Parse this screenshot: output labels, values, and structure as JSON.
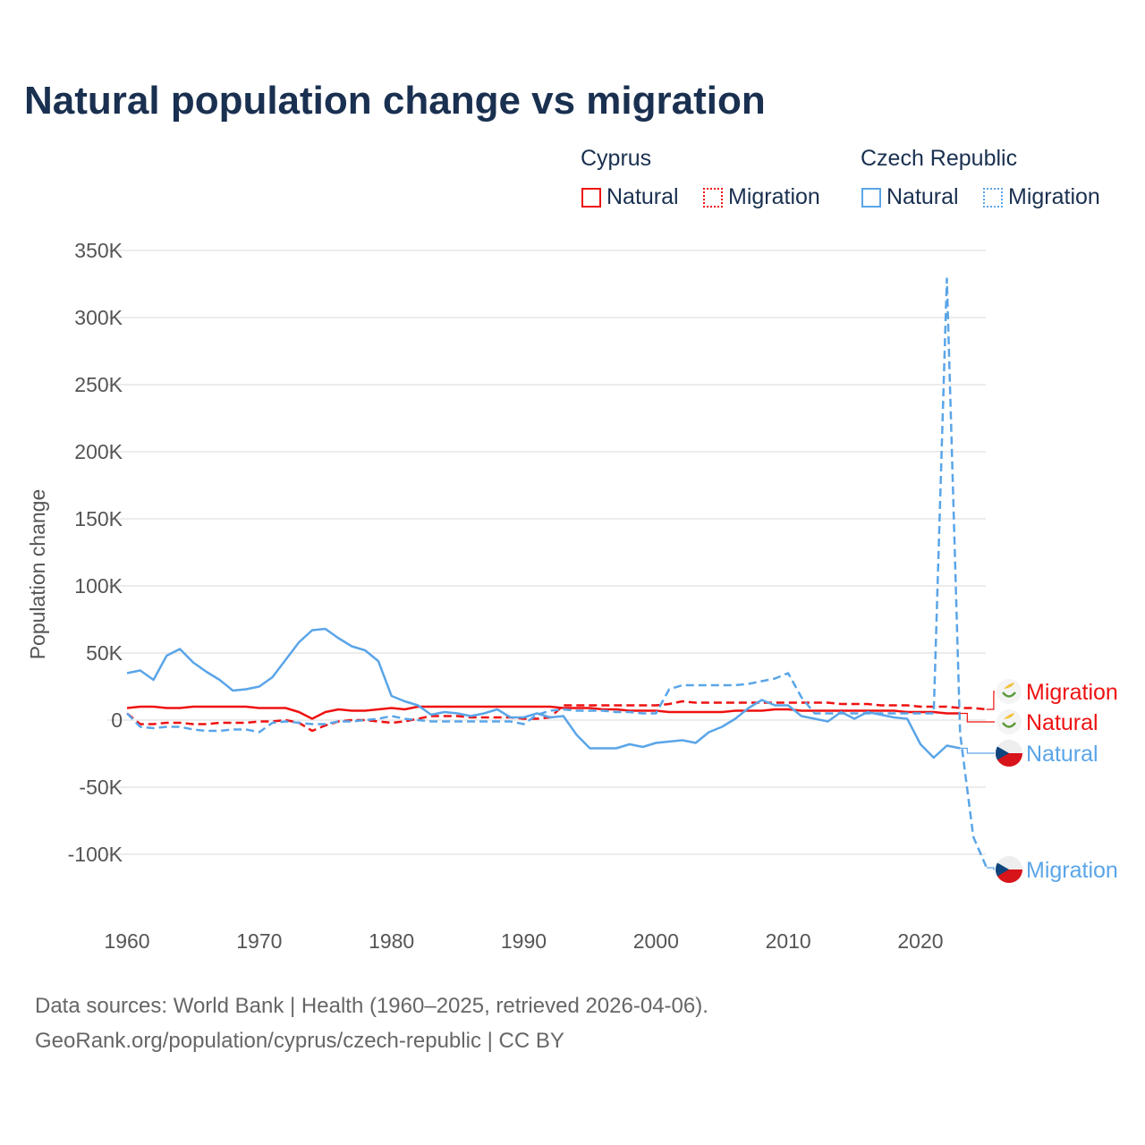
{
  "chart_data": {
    "type": "line",
    "title": "Natural population change vs migration",
    "xlabel": "",
    "ylabel": "Population change",
    "xlim": [
      1960,
      2025
    ],
    "ylim": [
      -125000,
      350000
    ],
    "x_ticks": [
      1960,
      1970,
      1980,
      1990,
      2000,
      2010,
      2020
    ],
    "x_tick_labels": [
      "1960",
      "1970",
      "1980",
      "1990",
      "2000",
      "2010",
      "2020"
    ],
    "y_ticks": [
      -100000,
      -50000,
      0,
      50000,
      100000,
      150000,
      200000,
      250000,
      300000,
      350000
    ],
    "y_tick_labels": [
      "-100K",
      "-50K",
      "0",
      "50K",
      "100K",
      "150K",
      "200K",
      "250K",
      "300K",
      "350K"
    ],
    "grid": true,
    "legend_placement": "top-right",
    "legend_groups": [
      {
        "name": "Cyprus",
        "items": [
          "Natural",
          "Migration"
        ]
      },
      {
        "name": "Czech Republic",
        "items": [
          "Natural",
          "Migration"
        ]
      }
    ],
    "series": [
      {
        "name": "Natural",
        "country": "Cyprus",
        "color": "#ee1111",
        "dash": false,
        "start_year": 1960,
        "values": [
          9,
          10,
          10,
          9,
          9,
          10,
          10,
          10,
          10,
          10,
          9,
          9,
          9,
          6,
          1,
          6,
          8,
          7,
          7,
          8,
          9,
          8,
          10,
          10,
          10,
          10,
          10,
          10,
          10,
          10,
          10,
          10,
          10,
          9,
          9,
          9,
          8,
          8,
          7,
          7,
          7,
          6,
          6,
          6,
          6,
          6,
          7,
          7,
          7,
          8,
          8,
          7,
          7,
          7,
          7,
          7,
          7,
          7,
          7,
          6,
          6,
          6,
          5,
          5
        ]
      },
      {
        "name": "Migration",
        "country": "Cyprus",
        "color": "#ee1111",
        "dash": true,
        "start_year": 1960,
        "values": [
          5,
          -3,
          -3,
          -2,
          -2,
          -3,
          -3,
          -2,
          -2,
          -2,
          -1,
          -1,
          0,
          -2,
          -8,
          -4,
          -1,
          0,
          0,
          -1,
          -2,
          -1,
          1,
          3,
          3,
          3,
          2,
          2,
          2,
          2,
          1,
          1,
          2,
          11,
          11,
          11,
          11,
          11,
          11,
          11,
          11,
          12,
          14,
          13,
          13,
          13,
          13,
          13,
          13,
          13,
          13,
          13,
          13,
          13,
          12,
          12,
          12,
          11,
          11,
          11,
          10,
          10,
          10,
          9,
          9,
          8
        ]
      },
      {
        "name": "Natural",
        "country": "Czech Republic",
        "color": "#5aa5e8",
        "dash": false,
        "start_year": 1960,
        "values": [
          35,
          37,
          30,
          48,
          53,
          43,
          36,
          30,
          22,
          23,
          25,
          32,
          45,
          58,
          67,
          68,
          61,
          55,
          52,
          44,
          18,
          14,
          11,
          4,
          6,
          5,
          3,
          5,
          8,
          2,
          2,
          5,
          2,
          3,
          -11,
          -21,
          -21,
          -21,
          -18,
          -20,
          -17,
          -16,
          -15,
          -17,
          -9,
          -5,
          1,
          9,
          15,
          11,
          11,
          3,
          1,
          -1,
          6,
          1,
          6,
          4,
          2,
          1,
          -18,
          -28,
          -19,
          -21
        ]
      },
      {
        "name": "Migration",
        "country": "Czech Republic",
        "color": "#5aa5e8",
        "dash": true,
        "start_year": 1960,
        "values": [
          5,
          -5,
          -6,
          -5,
          -5,
          -7,
          -8,
          -8,
          -7,
          -7,
          -9,
          -2,
          -1,
          -2,
          -3,
          -3,
          -1,
          -1,
          0,
          1,
          3,
          1,
          0,
          -1,
          -1,
          -1,
          -1,
          -1,
          -1,
          -1,
          -3,
          4,
          7,
          8,
          7,
          7,
          7,
          6,
          6,
          5,
          5,
          23,
          26,
          26,
          26,
          26,
          26,
          27,
          29,
          31,
          35,
          17,
          5,
          5,
          5,
          5,
          5,
          5,
          5,
          5,
          5,
          5,
          329,
          -10,
          -87,
          -110
        ]
      }
    ],
    "value_unit": "thousands",
    "end_labels": [
      "Migration",
      "Natural",
      "Natural",
      "Migration"
    ]
  },
  "footer": {
    "line1": "Data sources: World Bank | Health (1960–2025, retrieved 2026-04-06).",
    "line2": "GeoRank.org/population/cyprus/czech-republic | CC BY"
  }
}
